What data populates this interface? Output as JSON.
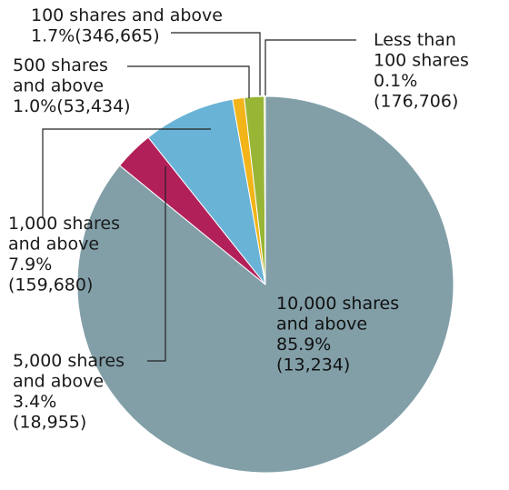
{
  "chart_data": {
    "type": "pie",
    "title": "",
    "start": "top, clockwise",
    "slices": [
      {
        "label_lines": [
          "10,000 shares",
          "and above",
          "85.9%",
          "(13,234)"
        ],
        "percent": 85.9,
        "count": "13,234",
        "color": "#829fa8"
      },
      {
        "label_lines": [
          "5,000 shares",
          "and above",
          "3.4%",
          "(18,955)"
        ],
        "percent": 3.4,
        "count": "18,955",
        "color": "#b2205a"
      },
      {
        "label_lines": [
          "1,000 shares",
          "and above",
          "7.9%",
          "(159,680)"
        ],
        "percent": 7.9,
        "count": "159,680",
        "color": "#69b3d6"
      },
      {
        "label_lines": [
          "500 shares",
          "and above",
          "1.0%(53,434)"
        ],
        "percent": 1.0,
        "count": "53,434",
        "color": "#f2b418"
      },
      {
        "label_lines": [
          "100 shares and above",
          "1.7%(346,665)"
        ],
        "percent": 1.7,
        "count": "346,665",
        "color": "#98b535"
      },
      {
        "label_lines": [
          "Less than",
          "100 shares",
          "0.1%",
          "(176,706)"
        ],
        "percent": 0.1,
        "count": "176,706",
        "color": "#c7d530"
      }
    ]
  }
}
